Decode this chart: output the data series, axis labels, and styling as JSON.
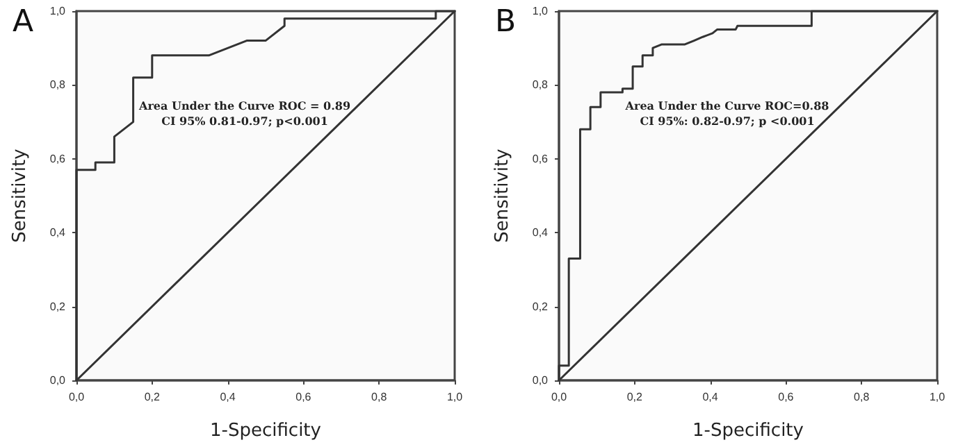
{
  "chart_data": [
    {
      "type": "line",
      "title": "A",
      "xlabel": "1-Specificity",
      "ylabel": "Sensitivity",
      "annotations": [
        "Area Under the Curve ROC = 0.89",
        "CI 95% 0.81-0.97; p<0.001"
      ],
      "series": [
        {
          "color": "#333333",
          "x": [
            0,
            0,
            0.05,
            0.05,
            0.1,
            0.1,
            0.15,
            0.15,
            0.2,
            0.2,
            0.35,
            0.45,
            0.5,
            0.55,
            0.55,
            0.95,
            0.95,
            1
          ],
          "values": [
            0,
            0.57,
            0.57,
            0.59,
            0.59,
            0.66,
            0.7,
            0.82,
            0.82,
            0.88,
            0.88,
            0.92,
            0.92,
            0.96,
            0.98,
            0.98,
            1,
            1
          ]
        },
        {
          "color": "#333333",
          "x": [
            0,
            1
          ],
          "values": [
            0,
            1
          ]
        }
      ],
      "xlim": [
        0,
        1
      ],
      "ylim": [
        0,
        1
      ],
      "xticks": [
        {
          "value": 0,
          "label": "0,0"
        },
        {
          "value": 0.2,
          "label": "0,2"
        },
        {
          "value": 0.4,
          "label": "0,4"
        },
        {
          "value": 0.6,
          "label": "0,6"
        },
        {
          "value": 0.8,
          "label": "0,8"
        },
        {
          "value": 1,
          "label": "1,0"
        }
      ],
      "yticks": [
        {
          "value": 0,
          "label": "0,0"
        },
        {
          "value": 0.2,
          "label": "0,2"
        },
        {
          "value": 0.4,
          "label": "0,4"
        },
        {
          "value": 0.6,
          "label": "0,6"
        },
        {
          "value": 0.8,
          "label": "0,8"
        },
        {
          "value": 1,
          "label": "1,0"
        }
      ],
      "grid": false,
      "marker": "none",
      "line_style": "solid"
    },
    {
      "type": "line",
      "title": "B",
      "xlabel": "1-Specificity",
      "ylabel": "Sensitivity",
      "annotations": [
        "Area Under the Curve ROC=0.88",
        "CI 95%: 0.82-0.97; p <0.001"
      ],
      "series": [
        {
          "color": "#333333",
          "x": [
            0,
            0,
            0.026,
            0.026,
            0.056,
            0.056,
            0.083,
            0.083,
            0.11,
            0.11,
            0.168,
            0.168,
            0.195,
            0.195,
            0.221,
            0.221,
            0.248,
            0.248,
            0.272,
            0.333,
            0.357,
            0.38,
            0.406,
            0.418,
            0.467,
            0.472,
            0.668,
            0.668,
            1
          ],
          "values": [
            0,
            0.04,
            0.04,
            0.33,
            0.33,
            0.68,
            0.68,
            0.74,
            0.74,
            0.78,
            0.78,
            0.79,
            0.79,
            0.85,
            0.85,
            0.88,
            0.88,
            0.9,
            0.91,
            0.91,
            0.92,
            0.93,
            0.94,
            0.95,
            0.95,
            0.96,
            0.96,
            1,
            1
          ]
        },
        {
          "color": "#333333",
          "x": [
            0,
            1
          ],
          "values": [
            0,
            1
          ]
        }
      ],
      "xlim": [
        0,
        1
      ],
      "ylim": [
        0,
        1
      ],
      "xticks": [
        {
          "value": 0,
          "label": "0,0"
        },
        {
          "value": 0.2,
          "label": "0,2"
        },
        {
          "value": 0.4,
          "label": "0,4"
        },
        {
          "value": 0.6,
          "label": "0,6"
        },
        {
          "value": 0.8,
          "label": "0,8"
        },
        {
          "value": 1,
          "label": "1,0"
        }
      ],
      "yticks": [
        {
          "value": 0,
          "label": "0,0"
        },
        {
          "value": 0.2,
          "label": "0,2"
        },
        {
          "value": 0.4,
          "label": "0,4"
        },
        {
          "value": 0.6,
          "label": "0,6"
        },
        {
          "value": 0.8,
          "label": "0,8"
        },
        {
          "value": 1,
          "label": "1,0"
        }
      ],
      "grid": false,
      "marker": "none",
      "line_style": "solid"
    }
  ]
}
